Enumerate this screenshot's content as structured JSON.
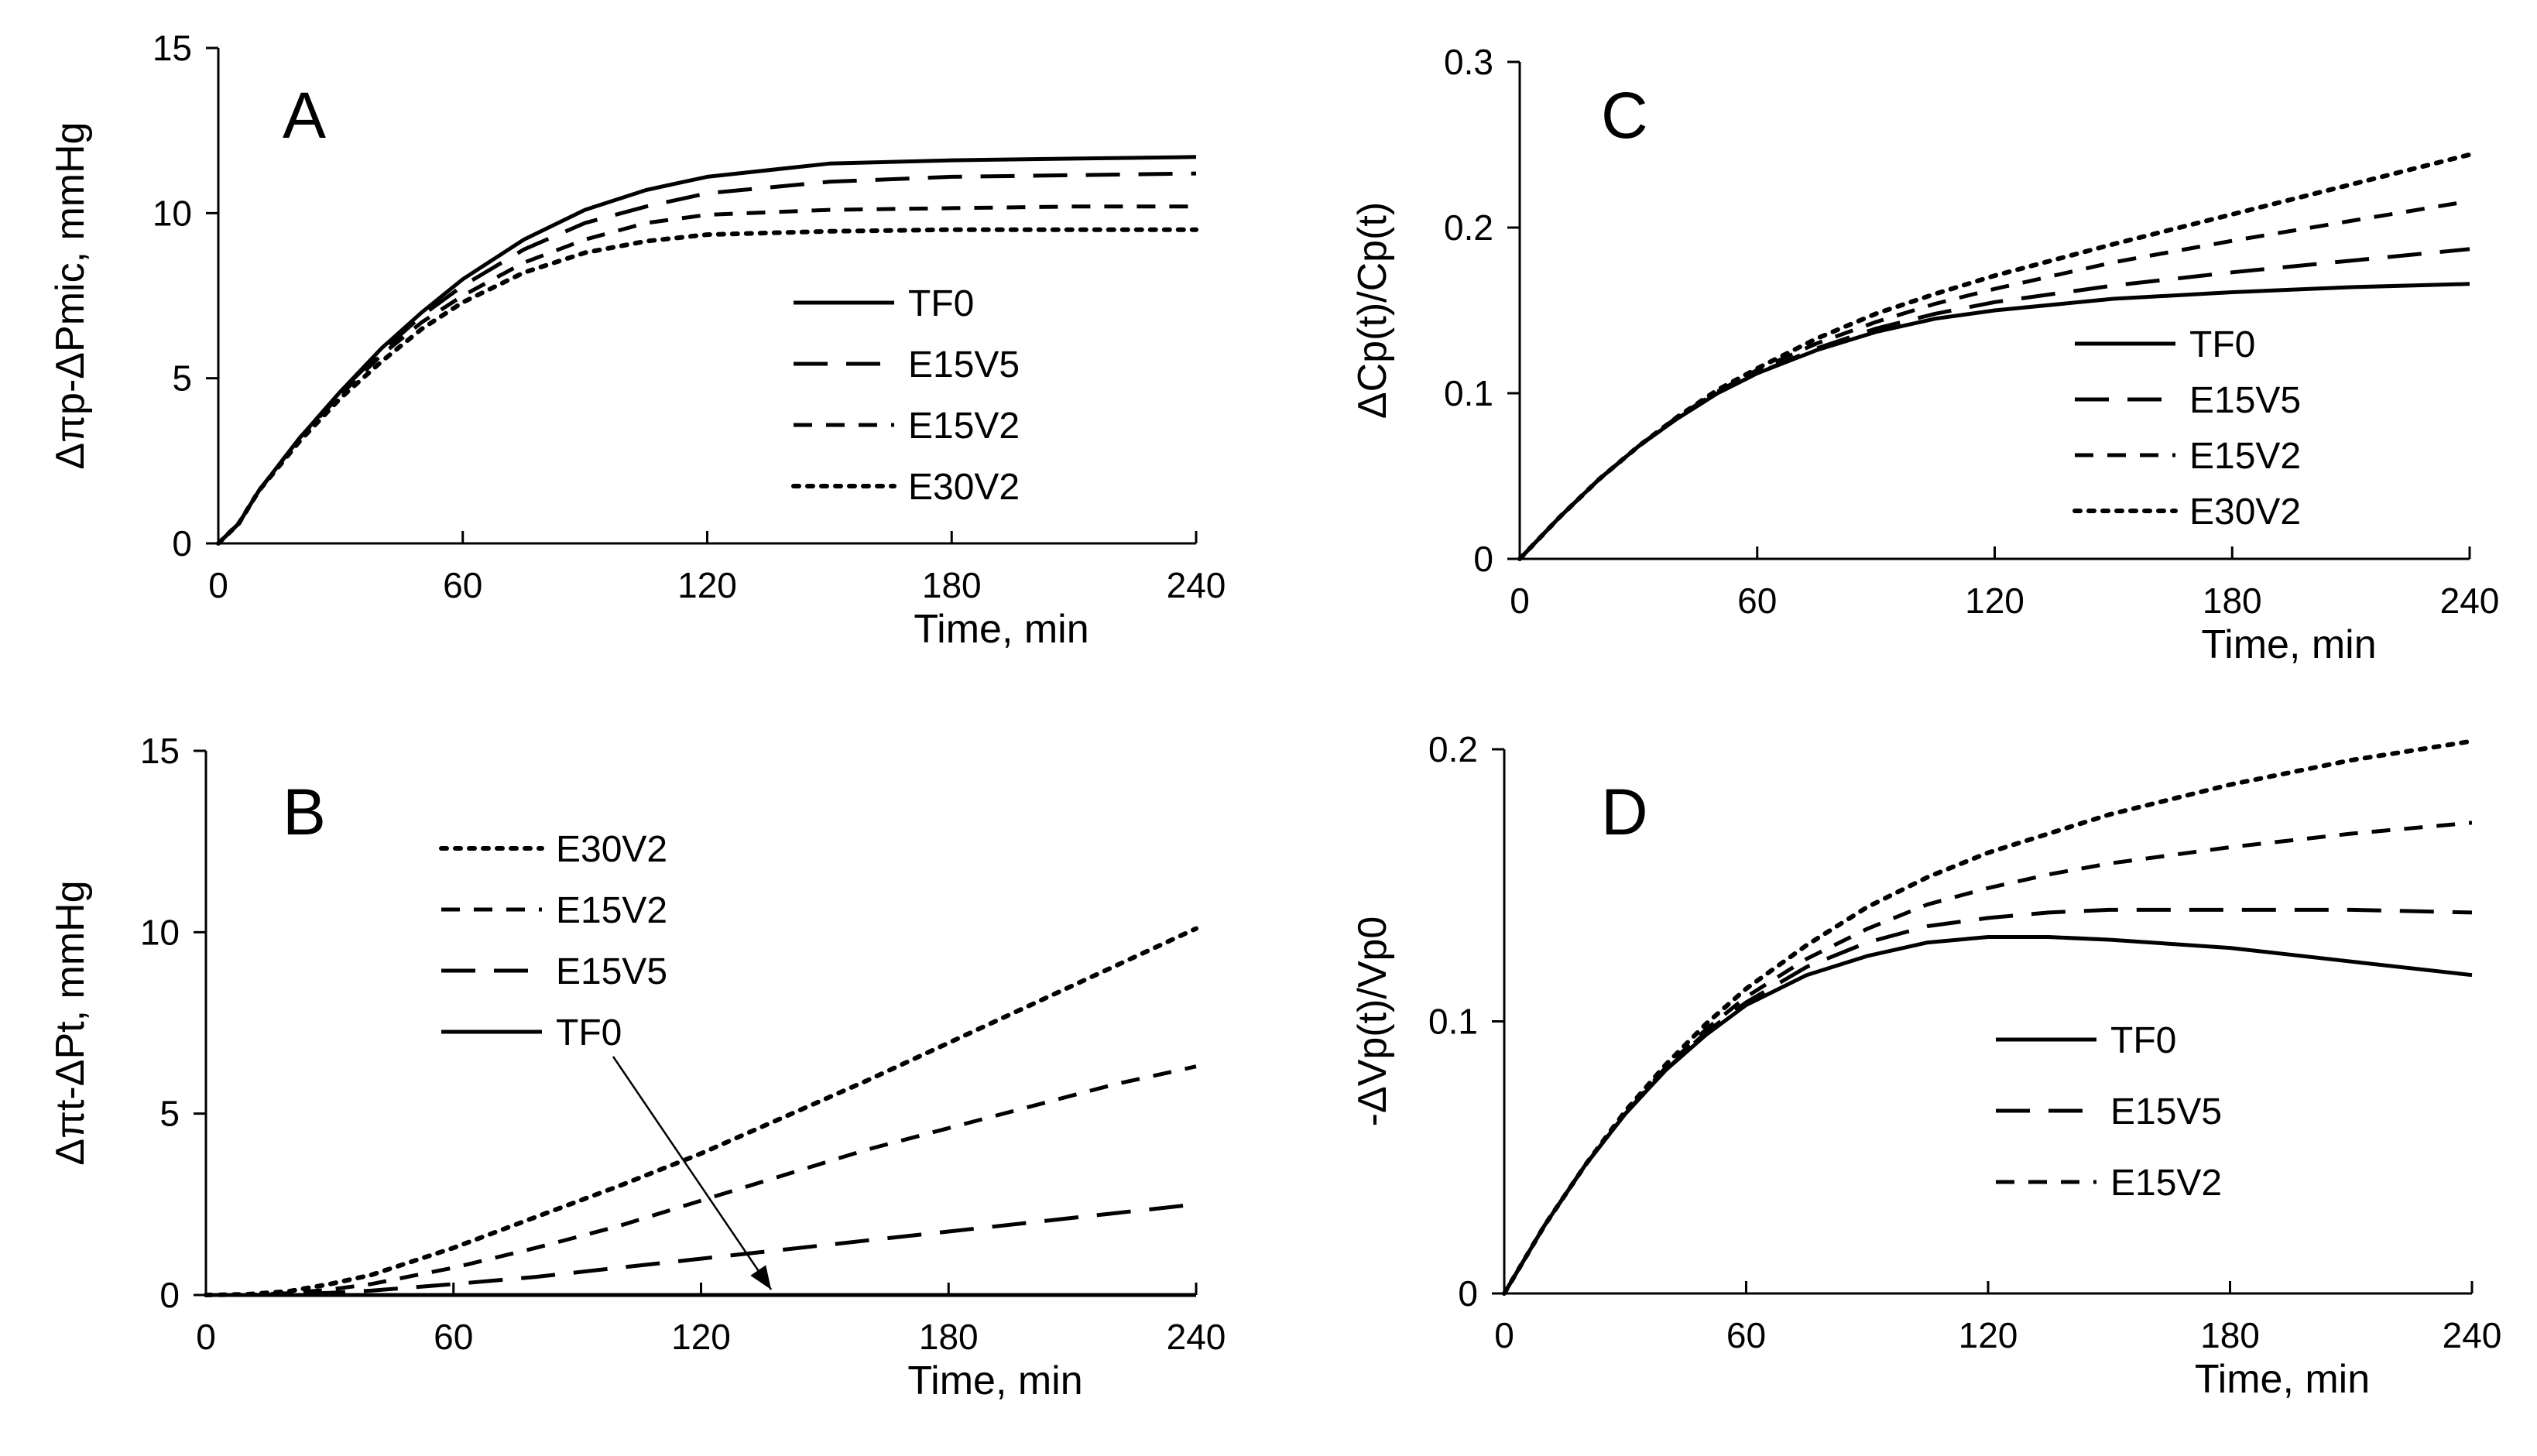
{
  "chart_data": [
    {
      "type": "line",
      "panel_label": "A",
      "xlabel": "Time, min",
      "ylabel": "Δπp-ΔPmic, mmHg",
      "xlim": [
        0,
        240
      ],
      "ylim": [
        0,
        15
      ],
      "xticks": [
        0,
        60,
        120,
        180,
        240
      ],
      "yticks": [
        0,
        5,
        10,
        15
      ],
      "legend_position": "center-right",
      "legend_order": [
        "TF0",
        "E15V5",
        "E15V2",
        "E30V2"
      ],
      "x": [
        0,
        5,
        10,
        20,
        30,
        40,
        50,
        60,
        75,
        90,
        105,
        120,
        150,
        180,
        210,
        240
      ],
      "series": [
        {
          "name": "TF0",
          "style": "solid",
          "values": [
            0,
            0.6,
            1.6,
            3.2,
            4.6,
            5.9,
            7.0,
            8.0,
            9.2,
            10.1,
            10.7,
            11.1,
            11.5,
            11.6,
            11.65,
            11.7
          ]
        },
        {
          "name": "E15V5",
          "style": "longdash",
          "values": [
            0,
            0.6,
            1.6,
            3.2,
            4.6,
            5.8,
            6.9,
            7.8,
            8.9,
            9.7,
            10.2,
            10.6,
            10.95,
            11.1,
            11.15,
            11.2
          ]
        },
        {
          "name": "E15V2",
          "style": "dash",
          "values": [
            0,
            0.6,
            1.6,
            3.2,
            4.5,
            5.7,
            6.7,
            7.5,
            8.5,
            9.2,
            9.7,
            9.95,
            10.1,
            10.15,
            10.2,
            10.2
          ]
        },
        {
          "name": "E30V2",
          "style": "dot",
          "values": [
            0,
            0.6,
            1.6,
            3.1,
            4.4,
            5.5,
            6.5,
            7.3,
            8.2,
            8.8,
            9.15,
            9.35,
            9.45,
            9.5,
            9.5,
            9.5
          ]
        }
      ]
    },
    {
      "type": "line",
      "panel_label": "B",
      "xlabel": "Time, min",
      "ylabel": "Δπt-ΔPt, mmHg",
      "xlim": [
        0,
        240
      ],
      "ylim": [
        0,
        15
      ],
      "xticks": [
        0,
        60,
        120,
        180,
        240
      ],
      "yticks": [
        0,
        5,
        10,
        15
      ],
      "legend_position": "top-left",
      "legend_order": [
        "E30V2",
        "E15V2",
        "E15V5",
        "TF0"
      ],
      "x": [
        0,
        10,
        20,
        30,
        40,
        60,
        80,
        100,
        120,
        140,
        160,
        180,
        200,
        220,
        240
      ],
      "series": [
        {
          "name": "TF0",
          "style": "solid",
          "values": [
            0,
            0,
            0,
            0,
            0,
            0,
            0,
            0,
            0,
            0,
            0,
            0,
            0,
            0,
            0
          ]
        },
        {
          "name": "E15V5",
          "style": "longdash",
          "values": [
            0,
            0,
            0.02,
            0.06,
            0.12,
            0.3,
            0.5,
            0.75,
            1.0,
            1.25,
            1.5,
            1.75,
            2.0,
            2.25,
            2.5
          ]
        },
        {
          "name": "E15V2",
          "style": "dash",
          "values": [
            0,
            0,
            0.05,
            0.15,
            0.3,
            0.75,
            1.3,
            1.9,
            2.6,
            3.3,
            4.0,
            4.6,
            5.2,
            5.8,
            6.3
          ]
        },
        {
          "name": "E30V2",
          "style": "dot",
          "values": [
            0,
            0.02,
            0.1,
            0.3,
            0.55,
            1.3,
            2.15,
            3.0,
            3.9,
            4.9,
            5.9,
            6.95,
            8.0,
            9.05,
            10.1
          ]
        }
      ],
      "annotation": {
        "type": "arrow",
        "from_legend_entry": "TF0",
        "to": [
          137,
          0.15
        ]
      }
    },
    {
      "type": "line",
      "panel_label": "C",
      "xlabel": "Time, min",
      "ylabel": "ΔCp(t)/Cp(t)",
      "xlim": [
        0,
        240
      ],
      "ylim": [
        0,
        0.3
      ],
      "xticks": [
        0,
        60,
        120,
        180,
        240
      ],
      "yticks": [
        0,
        0.1,
        0.2,
        0.3
      ],
      "legend_position": "center-right",
      "legend_order": [
        "TF0",
        "E15V5",
        "E15V2",
        "E30V2"
      ],
      "x": [
        0,
        10,
        20,
        30,
        40,
        50,
        60,
        75,
        90,
        105,
        120,
        150,
        180,
        210,
        240
      ],
      "series": [
        {
          "name": "TF0",
          "style": "solid",
          "values": [
            0,
            0.025,
            0.048,
            0.068,
            0.085,
            0.1,
            0.112,
            0.126,
            0.137,
            0.145,
            0.15,
            0.157,
            0.161,
            0.164,
            0.166
          ]
        },
        {
          "name": "E15V5",
          "style": "longdash",
          "values": [
            0,
            0.025,
            0.048,
            0.068,
            0.085,
            0.1,
            0.112,
            0.127,
            0.139,
            0.148,
            0.155,
            0.165,
            0.173,
            0.18,
            0.187
          ]
        },
        {
          "name": "E15V2",
          "style": "dash",
          "values": [
            0,
            0.025,
            0.048,
            0.068,
            0.086,
            0.101,
            0.114,
            0.13,
            0.143,
            0.154,
            0.163,
            0.179,
            0.192,
            0.204,
            0.216
          ]
        },
        {
          "name": "E30V2",
          "style": "dot",
          "values": [
            0,
            0.025,
            0.048,
            0.068,
            0.086,
            0.102,
            0.115,
            0.133,
            0.148,
            0.16,
            0.171,
            0.19,
            0.208,
            0.226,
            0.244
          ]
        }
      ]
    },
    {
      "type": "line",
      "panel_label": "D",
      "xlabel": "Time, min",
      "ylabel": "-ΔVp(t)/Vp0",
      "xlim": [
        0,
        240
      ],
      "ylim": [
        0,
        0.2
      ],
      "xticks": [
        0,
        60,
        120,
        180,
        240
      ],
      "yticks": [
        0,
        0.1,
        0.2
      ],
      "legend_position": "bottom-right",
      "legend_order": [
        "TF0",
        "E15V5",
        "E15V2"
      ],
      "x": [
        0,
        10,
        20,
        30,
        40,
        50,
        60,
        75,
        90,
        105,
        120,
        135,
        150,
        180,
        210,
        240
      ],
      "series": [
        {
          "name": "TF0",
          "style": "solid",
          "values": [
            0,
            0.025,
            0.047,
            0.066,
            0.082,
            0.095,
            0.106,
            0.117,
            0.124,
            0.129,
            0.131,
            0.131,
            0.13,
            0.127,
            0.122,
            0.117
          ]
        },
        {
          "name": "E15V5",
          "style": "longdash",
          "values": [
            0,
            0.025,
            0.047,
            0.066,
            0.082,
            0.096,
            0.107,
            0.12,
            0.129,
            0.135,
            0.138,
            0.14,
            0.141,
            0.141,
            0.141,
            0.14
          ]
        },
        {
          "name": "E15V2",
          "style": "dash",
          "values": [
            0,
            0.025,
            0.047,
            0.066,
            0.083,
            0.097,
            0.109,
            0.123,
            0.134,
            0.143,
            0.149,
            0.154,
            0.158,
            0.164,
            0.169,
            0.173
          ]
        },
        {
          "name": "",
          "style": "dot",
          "values": [
            0,
            0.025,
            0.047,
            0.067,
            0.084,
            0.099,
            0.112,
            0.128,
            0.142,
            0.153,
            0.162,
            0.169,
            0.176,
            0.187,
            0.196,
            0.203
          ]
        }
      ]
    }
  ]
}
